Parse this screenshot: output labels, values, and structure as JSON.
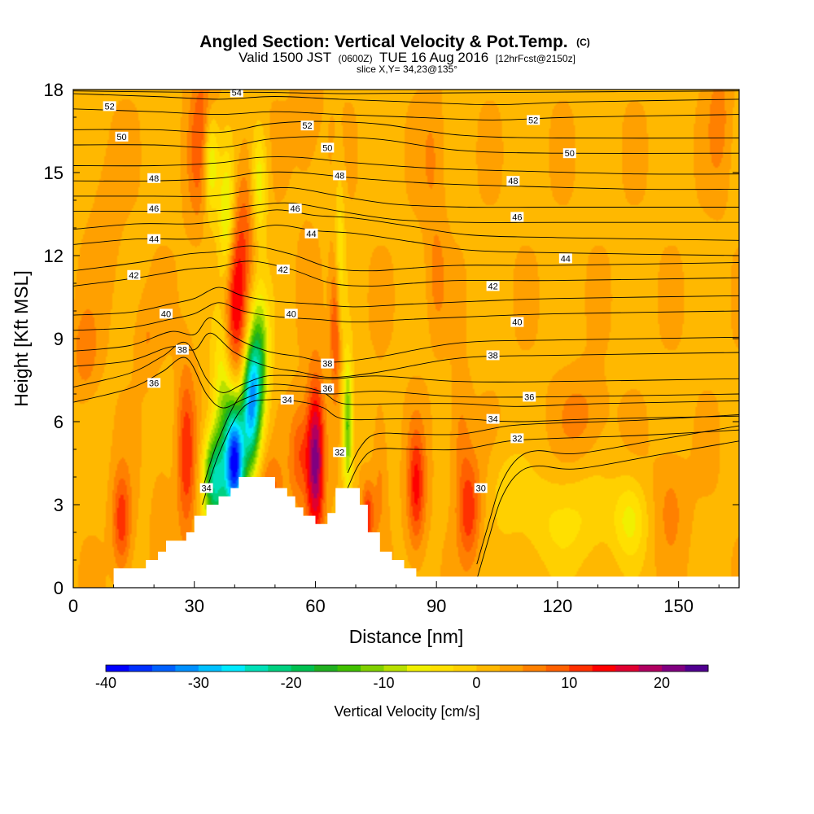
{
  "chart_data": {
    "type": "heatmap",
    "title": "Angled Section: Vertical Velocity & Pot.Temp.",
    "title_unit": "(C)",
    "subtitle": {
      "part1": "Valid 1500 JST",
      "part2": "(0600Z)",
      "part3": "TUE 16 Aug 2016",
      "part4": "[12hrFcst@2150z]"
    },
    "slice_label": "slice X,Y= 34,23@135°",
    "xlabel": "Distance [nm]",
    "ylabel": "Height [Kft MSL]",
    "xlim": [
      0,
      165
    ],
    "ylim": [
      0,
      18
    ],
    "xticks": [
      "0",
      "30",
      "60",
      "90",
      "120",
      "150"
    ],
    "yticks": [
      "0",
      "3",
      "6",
      "9",
      "12",
      "15",
      "18"
    ],
    "colorbar": {
      "label": "Vertical Velocity [cm/s]",
      "range": [
        -40,
        25
      ],
      "step": 2.5,
      "tick_labels": [
        "-40",
        "-30",
        "-20",
        "-10",
        "0",
        "10",
        "20"
      ],
      "colors": [
        "#0000ff",
        "#0030ff",
        "#0060ff",
        "#0090ff",
        "#00c0ff",
        "#00eaff",
        "#00e0b8",
        "#00d080",
        "#00c050",
        "#20b020",
        "#40c000",
        "#80d000",
        "#b8e000",
        "#f0f000",
        "#ffe000",
        "#ffd000",
        "#ffb800",
        "#ffa000",
        "#ff8000",
        "#ff6000",
        "#ff3000",
        "#ff0000",
        "#e00030",
        "#b00060",
        "#800080",
        "#500090"
      ]
    },
    "background_value": 2,
    "cells": [
      {
        "x": 18,
        "y": 9,
        "sx": 3,
        "sy": 1.5,
        "v": 5
      },
      {
        "x": 3,
        "y": 8.5,
        "sx": 3,
        "sy": 1.5,
        "v": 7
      },
      {
        "x": 12,
        "y": 2.4,
        "sx": 2.3,
        "sy": 1.8,
        "v": 12
      },
      {
        "x": 28,
        "y": 4.8,
        "sx": 2.3,
        "sy": 3,
        "v": 12
      },
      {
        "x": 22,
        "y": 3,
        "sx": 2.5,
        "sy": 2,
        "v": 4
      },
      {
        "x": 33,
        "y": 17,
        "sx": 3,
        "sy": 2.5,
        "v": 8
      },
      {
        "x": 40,
        "y": 10.2,
        "sx": 3.2,
        "sy": 3,
        "v": 15
      },
      {
        "x": 43,
        "y": 13.5,
        "sx": 3,
        "sy": 2.5,
        "v": 7
      },
      {
        "x": 31,
        "y": 15.5,
        "sx": 3,
        "sy": 2.5,
        "v": 7
      },
      {
        "x": 35,
        "y": 3.8,
        "sx": 2.8,
        "sy": 1.8,
        "v": -22
      },
      {
        "x": 40,
        "y": 4.5,
        "sx": 2.5,
        "sy": 2.2,
        "v": -37
      },
      {
        "x": 44,
        "y": 6.5,
        "sx": 2.2,
        "sy": 2.2,
        "v": -25
      },
      {
        "x": 46,
        "y": 8.2,
        "sx": 2.5,
        "sy": 2.5,
        "v": -15
      },
      {
        "x": 37,
        "y": 7.5,
        "sx": 2.5,
        "sy": 3,
        "v": -8
      },
      {
        "x": 38,
        "y": 13.2,
        "sx": 2,
        "sy": 2.5,
        "v": -10
      },
      {
        "x": 46,
        "y": 14.6,
        "sx": 2,
        "sy": 2,
        "v": -8
      },
      {
        "x": 34,
        "y": 15.5,
        "sx": 2,
        "sy": 2,
        "v": -12
      },
      {
        "x": 49,
        "y": 3.4,
        "sx": 3,
        "sy": 1.3,
        "v": 8
      },
      {
        "x": 60,
        "y": 4.6,
        "sx": 2.2,
        "sy": 2.8,
        "v": 22
      },
      {
        "x": 56,
        "y": 4.8,
        "sx": 2.5,
        "sy": 1.8,
        "v": 10
      },
      {
        "x": 65,
        "y": 9.5,
        "sx": 1.3,
        "sy": 2.5,
        "v": 12
      },
      {
        "x": 68,
        "y": 5.8,
        "sx": 1.3,
        "sy": 2.5,
        "v": -14
      },
      {
        "x": 66,
        "y": 12,
        "sx": 1.3,
        "sy": 3,
        "v": -5
      },
      {
        "x": 73,
        "y": 2.6,
        "sx": 1.5,
        "sy": 1.2,
        "v": 12
      },
      {
        "x": 76,
        "y": 4,
        "sx": 1.8,
        "sy": 2.5,
        "v": 6
      },
      {
        "x": 85,
        "y": 3.6,
        "sx": 2.2,
        "sy": 2.2,
        "v": 13
      },
      {
        "x": 98,
        "y": 2.8,
        "sx": 2.8,
        "sy": 1.9,
        "v": 12
      },
      {
        "x": 96,
        "y": 5.5,
        "sx": 2.5,
        "sy": 2,
        "v": 6
      },
      {
        "x": 90,
        "y": 11.2,
        "sx": 2.5,
        "sy": 2,
        "v": 6
      },
      {
        "x": 89,
        "y": 15.5,
        "sx": 3,
        "sy": 2.5,
        "v": 5
      },
      {
        "x": 122,
        "y": 2.4,
        "sx": 12,
        "sy": 1.8,
        "v": -3
      },
      {
        "x": 138,
        "y": 2.5,
        "sx": 4,
        "sy": 1.5,
        "v": -5
      },
      {
        "x": 107,
        "y": 3.6,
        "sx": 4,
        "sy": 1.5,
        "v": -1
      },
      {
        "x": 126,
        "y": 6.2,
        "sx": 6,
        "sy": 1.5,
        "v": 6
      },
      {
        "x": 148,
        "y": 3,
        "sx": 4,
        "sy": 2,
        "v": 6
      },
      {
        "x": 160,
        "y": 17,
        "sx": 3,
        "sy": 2.5,
        "v": 6
      },
      {
        "x": 58,
        "y": 16.5,
        "sx": 4,
        "sy": 3,
        "v": 4
      },
      {
        "x": 8,
        "y": 13,
        "sx": 4,
        "sy": 3,
        "v": 4
      }
    ],
    "terrain": [
      [
        0,
        0
      ],
      [
        10,
        0.7
      ],
      [
        16,
        0.7
      ],
      [
        18,
        1.0
      ],
      [
        21,
        1.3
      ],
      [
        23,
        1.7
      ],
      [
        28,
        2.0
      ],
      [
        30,
        2.6
      ],
      [
        33,
        3.0
      ],
      [
        36,
        3.3
      ],
      [
        39,
        3.6
      ],
      [
        41,
        4.0
      ],
      [
        47,
        4.0
      ],
      [
        50,
        3.6
      ],
      [
        53,
        3.3
      ],
      [
        55,
        2.9
      ],
      [
        57,
        2.6
      ],
      [
        60,
        2.3
      ],
      [
        63,
        2.7
      ],
      [
        65,
        3.6
      ],
      [
        69,
        3.6
      ],
      [
        71,
        3.0
      ],
      [
        73,
        2.0
      ],
      [
        76,
        1.3
      ],
      [
        79,
        1.0
      ],
      [
        82,
        0.7
      ],
      [
        85,
        0.4
      ],
      [
        165,
        0.4
      ]
    ],
    "isotherms": [
      {
        "value": 30,
        "points": [
          [
            100,
            0.3
          ],
          [
            103,
            1.8
          ],
          [
            106,
            3.2
          ],
          [
            110,
            4.1
          ],
          [
            115,
            4.4
          ],
          [
            125,
            4.3
          ],
          [
            145,
            4.8
          ],
          [
            165,
            5.3
          ]
        ]
      },
      {
        "value": 32,
        "points": [
          [
            68,
            3.6
          ],
          [
            71,
            4.5
          ],
          [
            75,
            5.0
          ],
          [
            84,
            5.0
          ],
          [
            96,
            5.0
          ],
          [
            108,
            5.3
          ],
          [
            120,
            5.4
          ],
          [
            140,
            5.5
          ],
          [
            165,
            5.7
          ]
        ]
      },
      {
        "value": 34,
        "points": [
          [
            32,
            3.0
          ],
          [
            36,
            4.8
          ],
          [
            42,
            6.5
          ],
          [
            49,
            6.8
          ],
          [
            57,
            6.7
          ],
          [
            62,
            6.5
          ],
          [
            67,
            6.1
          ],
          [
            80,
            6.1
          ],
          [
            96,
            6.1
          ],
          [
            110,
            6.0
          ],
          [
            130,
            6.1
          ],
          [
            165,
            6.2
          ]
        ]
      },
      {
        "value": 36,
        "points": [
          [
            0,
            6.7
          ],
          [
            14,
            7.2
          ],
          [
            22,
            7.8
          ],
          [
            28,
            8.3
          ],
          [
            33,
            7.0
          ],
          [
            37,
            6.5
          ],
          [
            42,
            6.8
          ],
          [
            48,
            7.1
          ],
          [
            56,
            7.1
          ],
          [
            64,
            7.0
          ],
          [
            76,
            7.1
          ],
          [
            96,
            6.9
          ],
          [
            120,
            6.9
          ],
          [
            165,
            7.0
          ]
        ]
      },
      {
        "value": 38,
        "points": [
          [
            0,
            8.0
          ],
          [
            14,
            8.2
          ],
          [
            24,
            8.7
          ],
          [
            30,
            8.6
          ],
          [
            34,
            9.2
          ],
          [
            40,
            8.5
          ],
          [
            48,
            8.0
          ],
          [
            56,
            7.8
          ],
          [
            64,
            7.6
          ],
          [
            76,
            7.8
          ],
          [
            96,
            8.3
          ],
          [
            120,
            8.4
          ],
          [
            165,
            8.5
          ]
        ]
      },
      {
        "value": 40,
        "points": [
          [
            0,
            9.3
          ],
          [
            14,
            9.4
          ],
          [
            24,
            9.7
          ],
          [
            30,
            9.9
          ],
          [
            36,
            10.3
          ],
          [
            42,
            10.0
          ],
          [
            50,
            9.8
          ],
          [
            60,
            9.7
          ],
          [
            70,
            9.6
          ],
          [
            84,
            9.7
          ],
          [
            100,
            9.8
          ],
          [
            120,
            9.9
          ],
          [
            165,
            10.0
          ]
        ]
      },
      {
        "value": 42,
        "points": [
          [
            0,
            10.9
          ],
          [
            16,
            11.2
          ],
          [
            28,
            11.5
          ],
          [
            36,
            11.6
          ],
          [
            44,
            11.8
          ],
          [
            54,
            11.5
          ],
          [
            64,
            11.0
          ],
          [
            74,
            10.9
          ],
          [
            84,
            11.0
          ],
          [
            96,
            11.1
          ],
          [
            120,
            11.1
          ],
          [
            165,
            11.2
          ]
        ]
      },
      {
        "value": 44,
        "points": [
          [
            0,
            12.4
          ],
          [
            16,
            12.6
          ],
          [
            30,
            12.6
          ],
          [
            40,
            12.8
          ],
          [
            50,
            13.1
          ],
          [
            60,
            12.9
          ],
          [
            70,
            12.8
          ],
          [
            84,
            12.5
          ],
          [
            98,
            12.2
          ],
          [
            120,
            12.1
          ],
          [
            165,
            12.0
          ]
        ]
      },
      {
        "value": 46,
        "points": [
          [
            0,
            13.6
          ],
          [
            20,
            13.6
          ],
          [
            34,
            13.6
          ],
          [
            44,
            13.8
          ],
          [
            54,
            13.9
          ],
          [
            66,
            13.6
          ],
          [
            80,
            13.3
          ],
          [
            98,
            13.2
          ],
          [
            120,
            13.2
          ],
          [
            165,
            13.2
          ]
        ]
      },
      {
        "value": 48,
        "points": [
          [
            0,
            14.7
          ],
          [
            20,
            14.7
          ],
          [
            36,
            14.8
          ],
          [
            46,
            15.0
          ],
          [
            56,
            15.0
          ],
          [
            70,
            14.8
          ],
          [
            90,
            14.6
          ],
          [
            112,
            14.5
          ],
          [
            140,
            14.4
          ],
          [
            165,
            14.4
          ]
        ]
      },
      {
        "value": 50,
        "points": [
          [
            0,
            16.0
          ],
          [
            20,
            16.0
          ],
          [
            36,
            15.9
          ],
          [
            48,
            16.2
          ],
          [
            60,
            16.3
          ],
          [
            76,
            16.2
          ],
          [
            96,
            15.8
          ],
          [
            120,
            15.7
          ],
          [
            165,
            15.7
          ]
        ]
      },
      {
        "value": 52,
        "points": [
          [
            0,
            17.3
          ],
          [
            20,
            17.2
          ],
          [
            36,
            17.1
          ],
          [
            50,
            17.2
          ],
          [
            66,
            17.1
          ],
          [
            84,
            17.0
          ],
          [
            104,
            16.9
          ],
          [
            124,
            17.0
          ],
          [
            165,
            17.1
          ]
        ]
      },
      {
        "value": 54,
        "points": [
          [
            0,
            17.95
          ],
          [
            30,
            17.9
          ],
          [
            48,
            17.9
          ],
          [
            70,
            17.85
          ],
          [
            110,
            17.9
          ],
          [
            165,
            17.95
          ]
        ]
      }
    ],
    "isotherm_labels": [
      {
        "text": "52",
        "x": 9,
        "y": 17.4
      },
      {
        "text": "54",
        "x": 40.5,
        "y": 17.9
      },
      {
        "text": "52",
        "x": 58,
        "y": 16.7
      },
      {
        "text": "52",
        "x": 114,
        "y": 16.9
      },
      {
        "text": "50",
        "x": 12,
        "y": 16.3
      },
      {
        "text": "50",
        "x": 63,
        "y": 15.9
      },
      {
        "text": "50",
        "x": 123,
        "y": 15.7
      },
      {
        "text": "48",
        "x": 20,
        "y": 14.8
      },
      {
        "text": "48",
        "x": 66,
        "y": 14.9
      },
      {
        "text": "48",
        "x": 109,
        "y": 14.7
      },
      {
        "text": "46",
        "x": 20,
        "y": 13.7
      },
      {
        "text": "46",
        "x": 55,
        "y": 13.7
      },
      {
        "text": "46",
        "x": 110,
        "y": 13.4
      },
      {
        "text": "44",
        "x": 20,
        "y": 12.6
      },
      {
        "text": "44",
        "x": 59,
        "y": 12.8
      },
      {
        "text": "44",
        "x": 122,
        "y": 11.9
      },
      {
        "text": "42",
        "x": 15,
        "y": 11.3
      },
      {
        "text": "42",
        "x": 52,
        "y": 11.5
      },
      {
        "text": "42",
        "x": 104,
        "y": 10.9
      },
      {
        "text": "40",
        "x": 23,
        "y": 9.9
      },
      {
        "text": "40",
        "x": 54,
        "y": 9.9
      },
      {
        "text": "40",
        "x": 110,
        "y": 9.6
      },
      {
        "text": "38",
        "x": 27,
        "y": 8.6
      },
      {
        "text": "38",
        "x": 63,
        "y": 8.1
      },
      {
        "text": "38",
        "x": 104,
        "y": 8.4
      },
      {
        "text": "36",
        "x": 20,
        "y": 7.4
      },
      {
        "text": "36",
        "x": 63,
        "y": 7.2
      },
      {
        "text": "36",
        "x": 113,
        "y": 6.9
      },
      {
        "text": "34",
        "x": 53,
        "y": 6.8
      },
      {
        "text": "34",
        "x": 104,
        "y": 6.1
      },
      {
        "text": "34",
        "x": 33,
        "y": 3.6
      },
      {
        "text": "32",
        "x": 66,
        "y": 4.9
      },
      {
        "text": "32",
        "x": 110,
        "y": 5.4
      },
      {
        "text": "30",
        "x": 101,
        "y": 3.6
      }
    ]
  }
}
